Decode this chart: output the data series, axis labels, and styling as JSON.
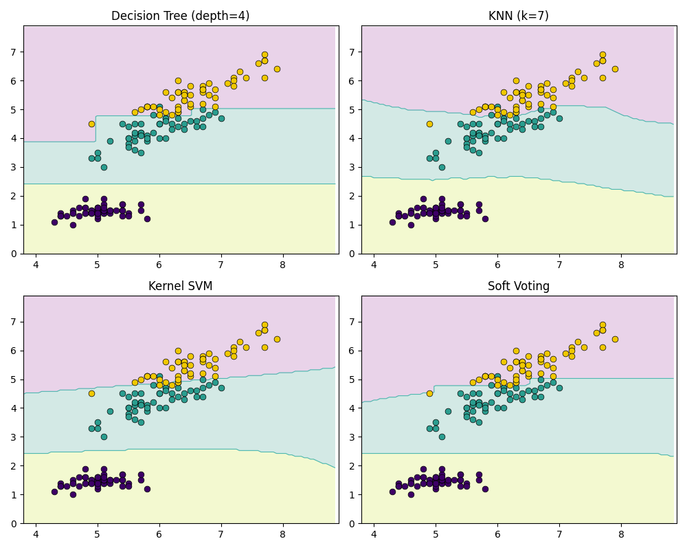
{
  "titles": [
    "Decision Tree (depth=4)",
    "KNN (k=7)",
    "Kernel SVM",
    "Soft Voting"
  ],
  "figsize": [
    10.0,
    8.0
  ],
  "dpi": 100,
  "background_color": "#ffffff",
  "region_colors": [
    "#e8f5a3",
    "#a8d5cc",
    "#d4a8d4"
  ],
  "scatter_colors": [
    "#3d0066",
    "#2a9d8f",
    "#f0c800"
  ],
  "scatter_edgecolor": "black",
  "scatter_size": 40,
  "xlim": [
    3.8,
    8.9
  ],
  "ylim": [
    0.0,
    7.9
  ],
  "mesh_step": 0.05,
  "contour_color": "#4db8b0",
  "contour_linewidth": 0.8
}
